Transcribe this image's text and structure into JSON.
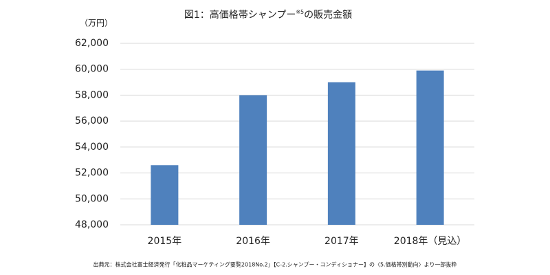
{
  "chart_data": {
    "type": "bar",
    "title": "図1：高価格帯シャンプー",
    "title_note": "※5",
    "title_suffix": "の販売金額",
    "y_unit": "（万円）",
    "categories": [
      "2015年",
      "2016年",
      "2017年",
      "2018年（見込）"
    ],
    "values": [
      52600,
      58000,
      59000,
      59900
    ],
    "color": "#4f81bd",
    "ylim": [
      48000,
      62000
    ],
    "yticks": [
      {
        "value": 48000,
        "label": "48,000"
      },
      {
        "value": 50000,
        "label": "50,000"
      },
      {
        "value": 52000,
        "label": "52,000"
      },
      {
        "value": 54000,
        "label": "54,000"
      },
      {
        "value": 56000,
        "label": "56,000"
      },
      {
        "value": 58000,
        "label": "58,000"
      },
      {
        "value": 60000,
        "label": "60,000"
      },
      {
        "value": 62000,
        "label": "62,000"
      }
    ],
    "grid": true,
    "source": "出典元：株式会社富士経済発行「化粧品マーケティング要覧2018No.2」【C-2.シャンプー・コンディショナー】の〈5.価格帯別動向〉より一部抜粋"
  }
}
